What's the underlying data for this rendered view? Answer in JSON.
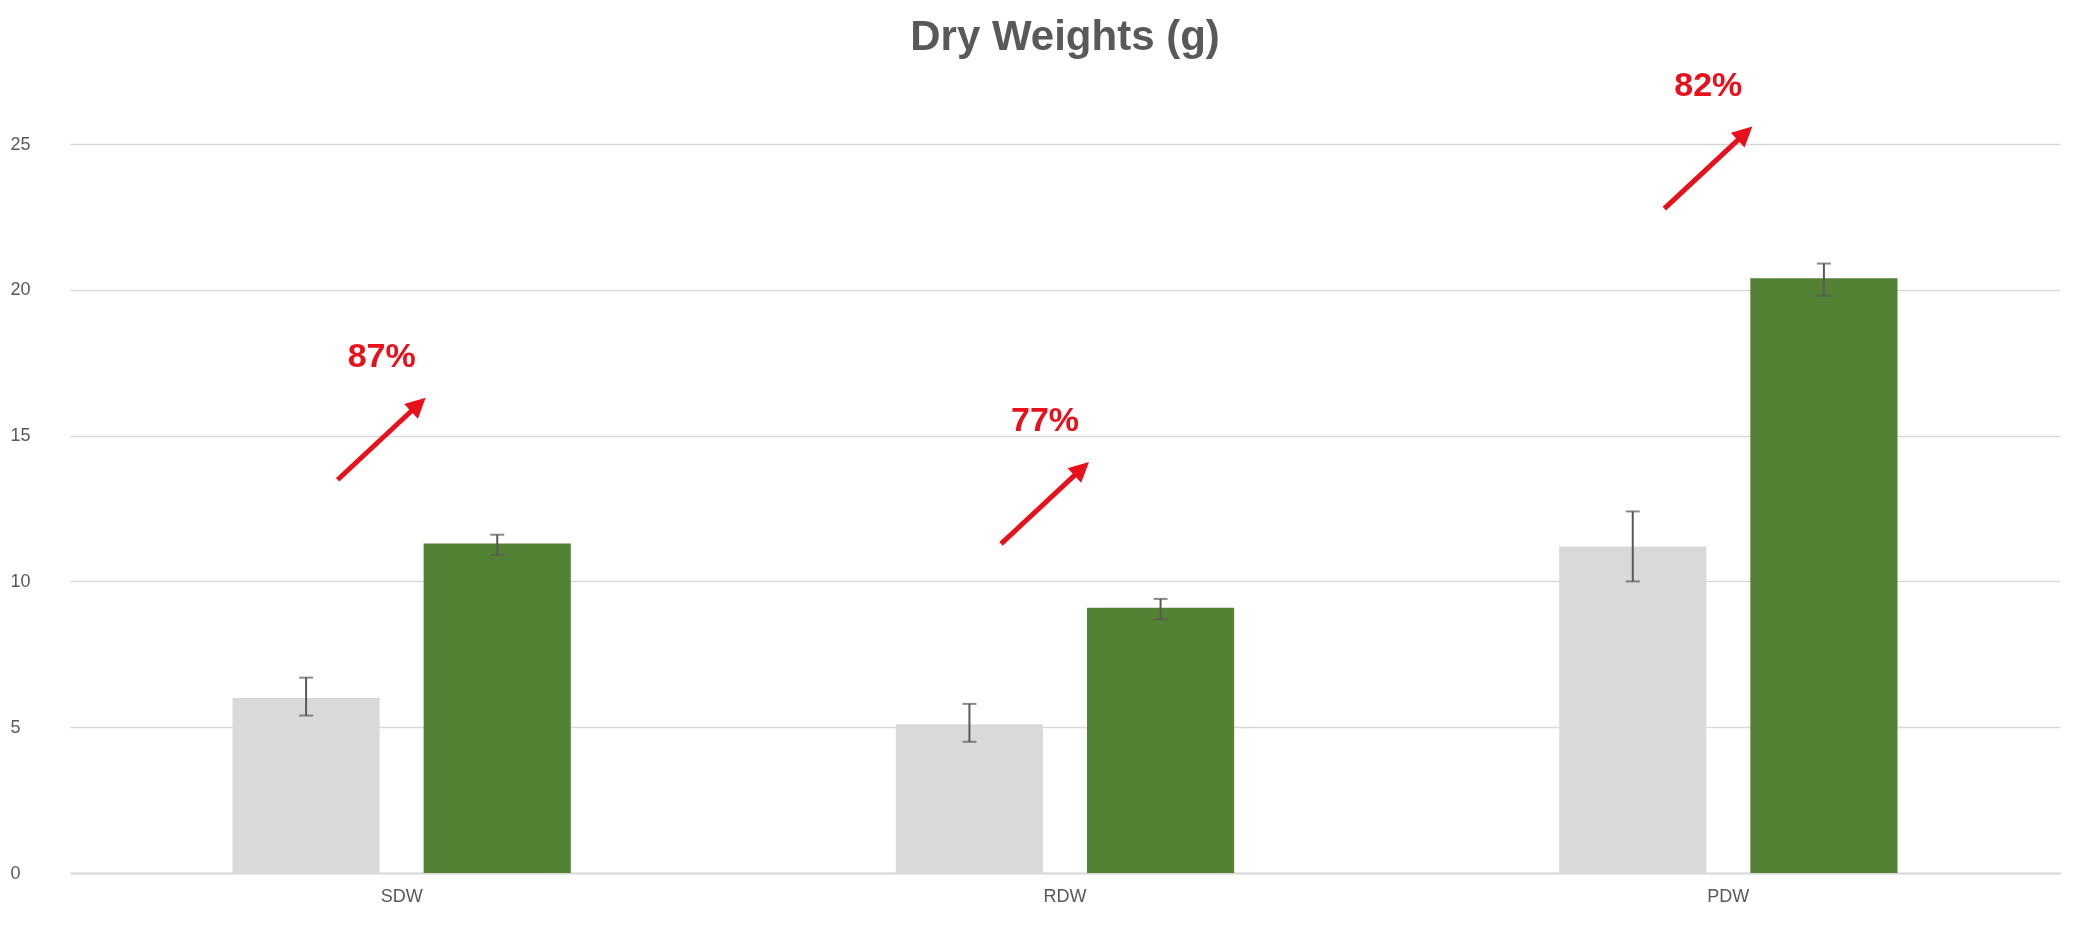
{
  "chart_data": {
    "type": "bar",
    "title": "Dry Weights (g)",
    "categories": [
      "SDW",
      "RDW",
      "PDW"
    ],
    "series": [
      {
        "color": "#d9d9d9",
        "values": [
          6.0,
          5.1,
          11.2
        ],
        "errors": [
          [
            5.4,
            6.7
          ],
          [
            4.5,
            5.8
          ],
          [
            10.0,
            12.4
          ]
        ]
      },
      {
        "color": "#548235",
        "values": [
          11.3,
          9.1,
          20.4
        ],
        "errors": [
          [
            10.9,
            11.6
          ],
          [
            8.7,
            9.4
          ],
          [
            19.8,
            20.9
          ]
        ]
      }
    ],
    "ylim": [
      0,
      25
    ],
    "yticks": [
      0,
      5,
      10,
      15,
      20,
      25
    ],
    "grid": "y",
    "legend": false,
    "annotations": [
      "87%",
      "77%",
      "82%"
    ]
  }
}
